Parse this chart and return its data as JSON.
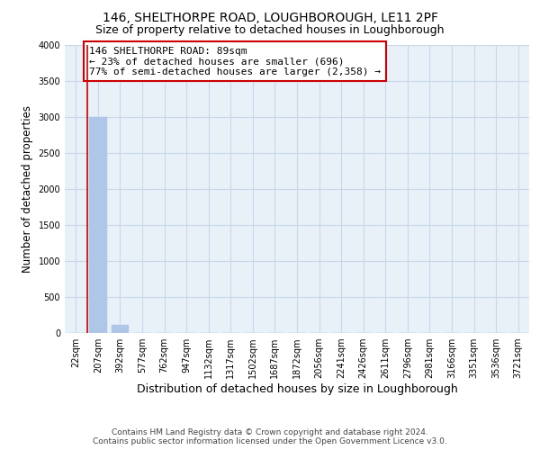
{
  "title": "146, SHELTHORPE ROAD, LOUGHBOROUGH, LE11 2PF",
  "subtitle": "Size of property relative to detached houses in Loughborough",
  "xlabel": "Distribution of detached houses by size in Loughborough",
  "ylabel": "Number of detached properties",
  "footer_line1": "Contains HM Land Registry data © Crown copyright and database right 2024.",
  "footer_line2": "Contains public sector information licensed under the Open Government Licence v3.0.",
  "categories": [
    "22sqm",
    "207sqm",
    "392sqm",
    "577sqm",
    "762sqm",
    "947sqm",
    "1132sqm",
    "1317sqm",
    "1502sqm",
    "1687sqm",
    "1872sqm",
    "2056sqm",
    "2241sqm",
    "2426sqm",
    "2611sqm",
    "2796sqm",
    "2981sqm",
    "3166sqm",
    "3351sqm",
    "3536sqm",
    "3721sqm"
  ],
  "values": [
    0,
    3000,
    110,
    0,
    0,
    0,
    0,
    0,
    0,
    0,
    0,
    0,
    0,
    0,
    0,
    0,
    0,
    0,
    0,
    0,
    0
  ],
  "bar_color": "#aec6e8",
  "bar_edge_color": "#aec6e8",
  "ylim": [
    0,
    4000
  ],
  "yticks": [
    0,
    500,
    1000,
    1500,
    2000,
    2500,
    3000,
    3500,
    4000
  ],
  "property_line_x": 0.5,
  "property_line_color": "#cc0000",
  "annotation_text": "146 SHELTHORPE ROAD: 89sqm\n← 23% of detached houses are smaller (696)\n77% of semi-detached houses are larger (2,358) →",
  "annotation_box_color": "#cc0000",
  "annotation_fill": "white",
  "grid_color": "#c8d8e8",
  "background_color": "#e8f0f8",
  "title_fontsize": 10,
  "subtitle_fontsize": 9,
  "annotation_fontsize": 8,
  "tick_fontsize": 7,
  "ylabel_fontsize": 8.5,
  "xlabel_fontsize": 9,
  "footer_fontsize": 6.5
}
